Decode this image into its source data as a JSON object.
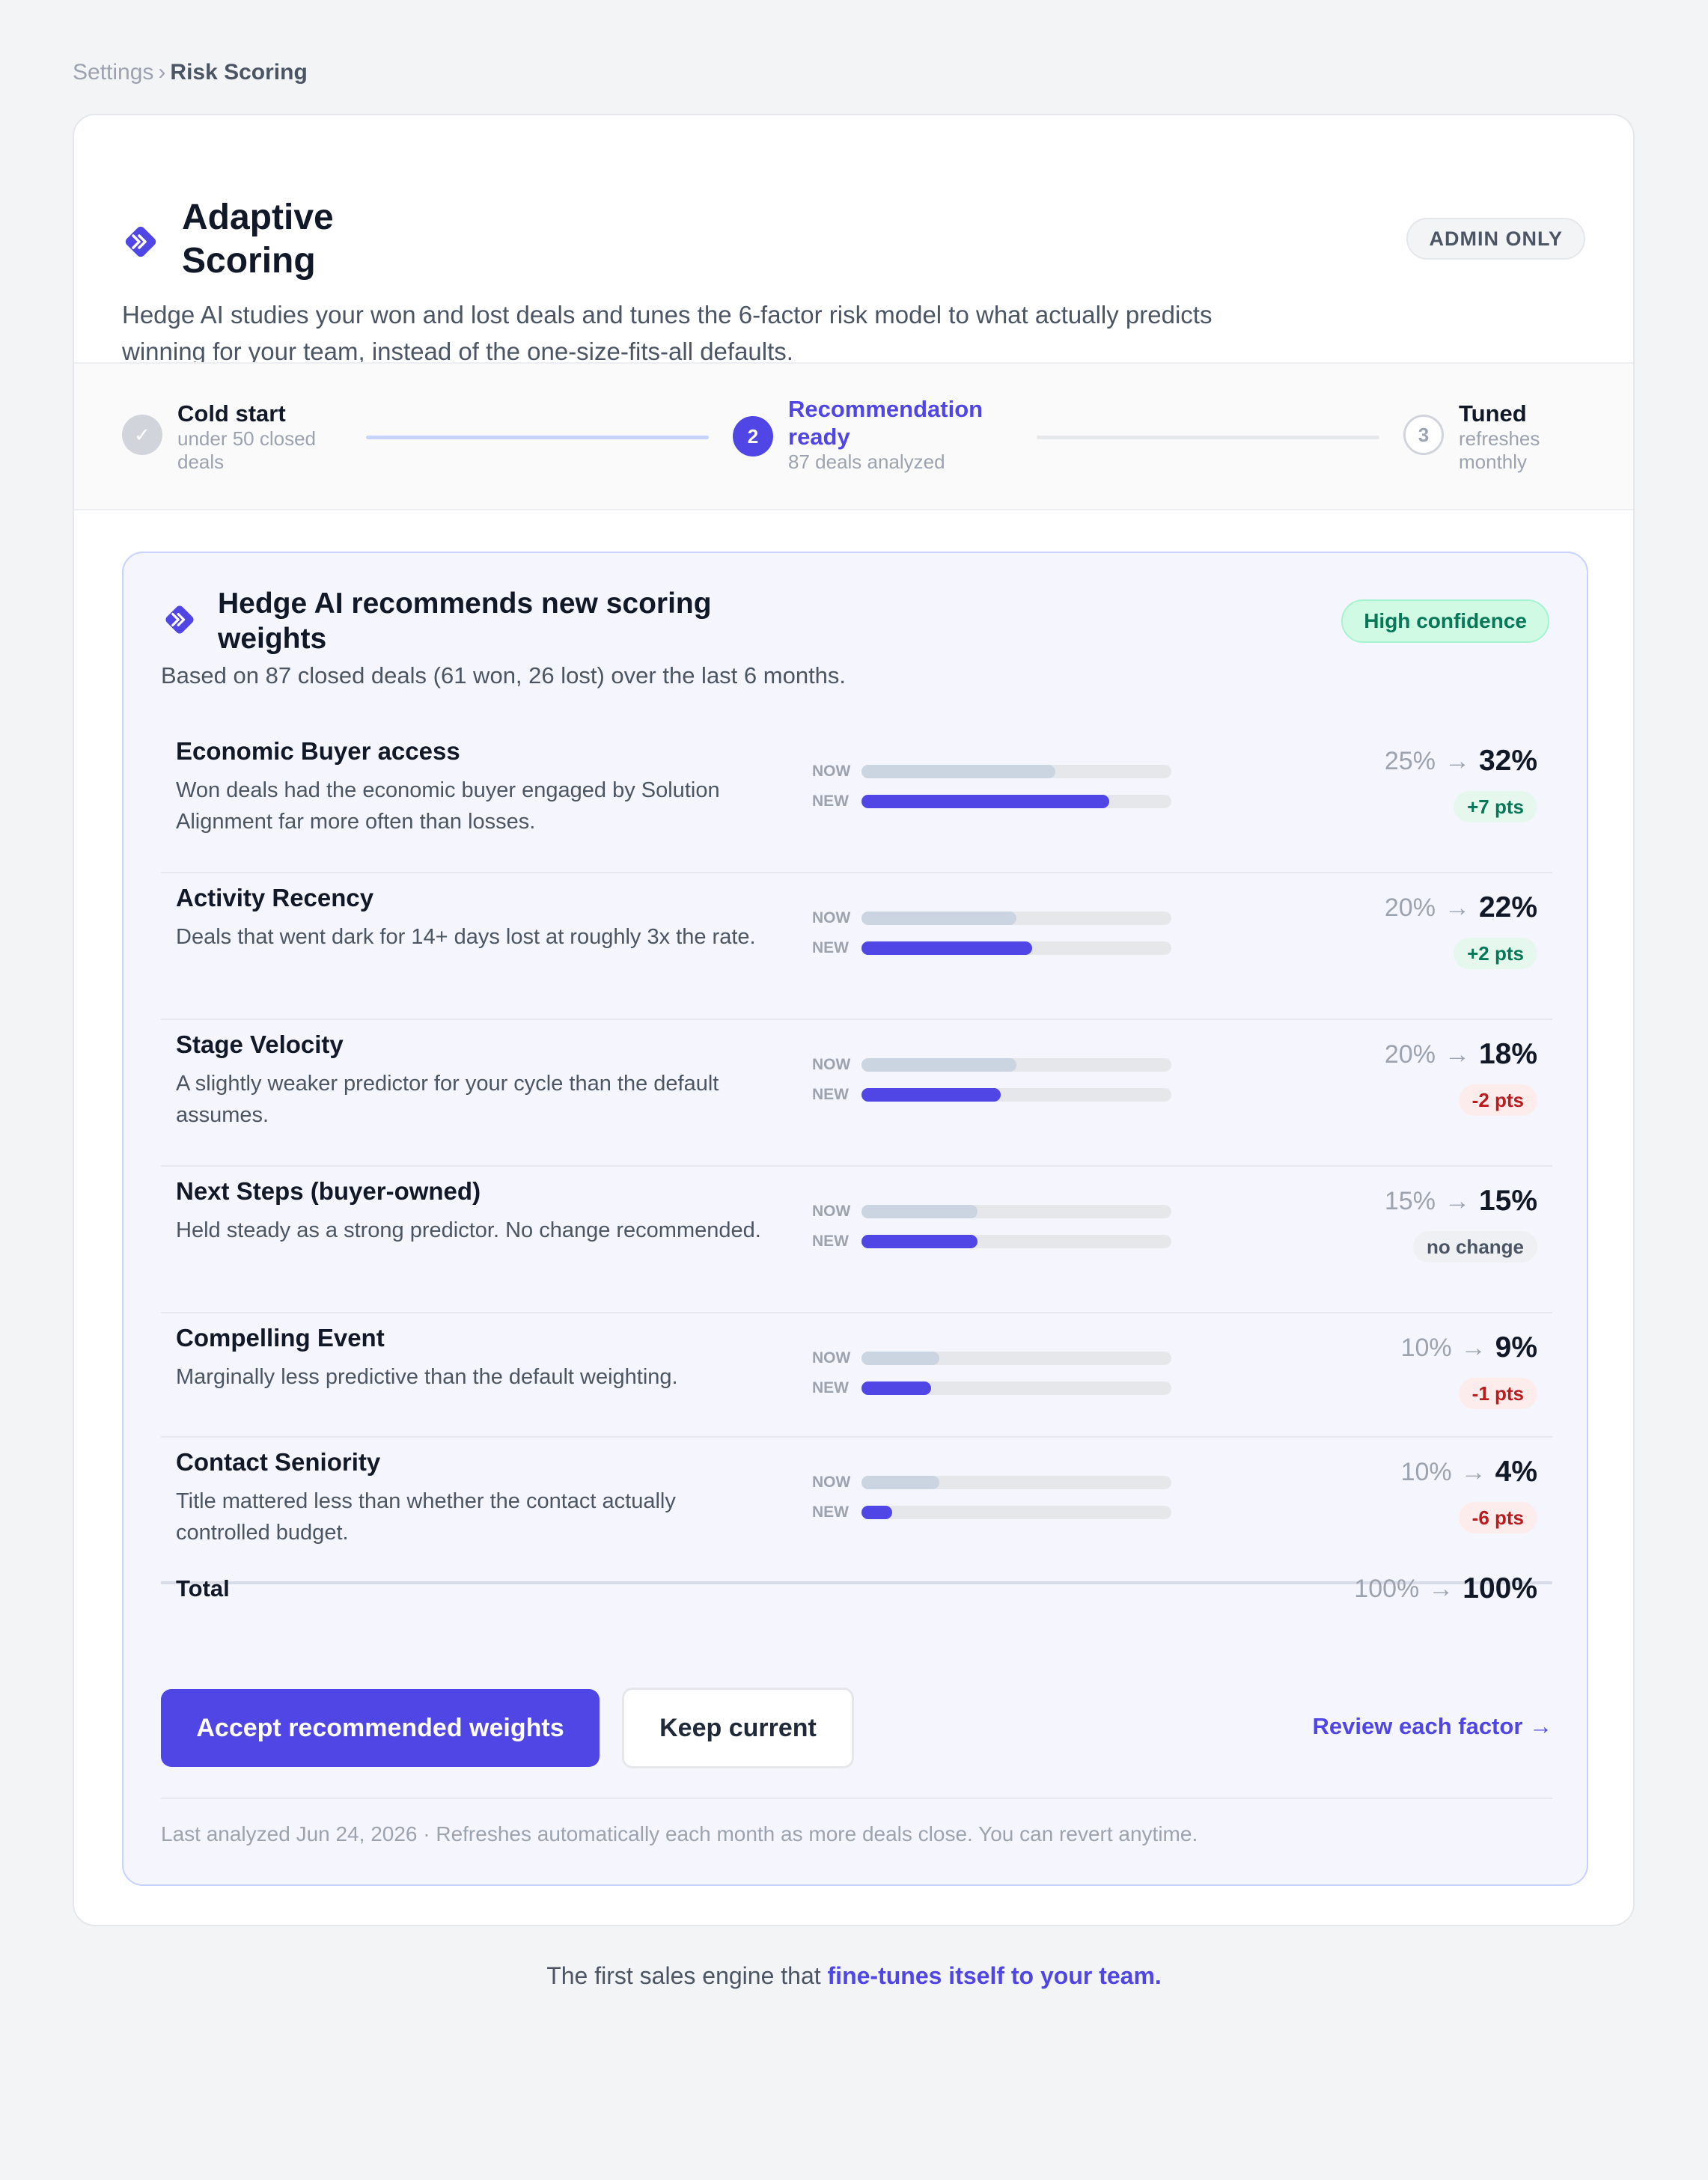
{
  "breadcrumb": {
    "parent": "Settings",
    "separator": "›",
    "current": "Risk Scoring"
  },
  "header": {
    "title": "Adaptive Scoring",
    "badge": "ADMIN ONLY",
    "description": "Hedge AI studies your won and lost deals and tunes the 6-factor risk model to what actually predicts winning for your team, instead of the one-size-fits-all defaults."
  },
  "stepper": {
    "steps": [
      {
        "label": "Cold start",
        "sub": "under 50 closed deals",
        "marker": "✓",
        "state": "done"
      },
      {
        "label": "Recommendation ready",
        "sub": "87 deals analyzed",
        "marker": "2",
        "state": "active"
      },
      {
        "label": "Tuned",
        "sub": "refreshes monthly",
        "marker": "3",
        "state": "pending"
      }
    ]
  },
  "recommendation": {
    "title": "Hedge AI recommends new scoring weights",
    "confidence": "High confidence",
    "based_on": "Based on 87 closed deals (61 won, 26 lost) over the last 6 months.",
    "now_label": "NOW",
    "new_label": "NEW",
    "arrow": "→",
    "factors": [
      {
        "name": "Economic Buyer access",
        "desc": "Won deals had the economic buyer engaged by Solution Alignment far more often than losses.",
        "now": 25,
        "new": 32,
        "now_text": "25%",
        "new_text": "32%",
        "change": "+7 pts",
        "trend": "up"
      },
      {
        "name": "Activity Recency",
        "desc": "Deals that went dark for 14+ days lost at roughly 3x the rate.",
        "now": 20,
        "new": 22,
        "now_text": "20%",
        "new_text": "22%",
        "change": "+2 pts",
        "trend": "up"
      },
      {
        "name": "Stage Velocity",
        "desc": "A slightly weaker predictor for your cycle than the default assumes.",
        "now": 20,
        "new": 18,
        "now_text": "20%",
        "new_text": "18%",
        "change": "-2 pts",
        "trend": "down"
      },
      {
        "name": "Next Steps (buyer-owned)",
        "desc": "Held steady as a strong predictor. No change recommended.",
        "now": 15,
        "new": 15,
        "now_text": "15%",
        "new_text": "15%",
        "change": "no change",
        "trend": "same"
      },
      {
        "name": "Compelling Event",
        "desc": "Marginally less predictive than the default weighting.",
        "now": 10,
        "new": 9,
        "now_text": "10%",
        "new_text": "9%",
        "change": "-1 pts",
        "trend": "down"
      },
      {
        "name": "Contact Seniority",
        "desc": "Title mattered less than whether the contact actually controlled budget.",
        "now": 10,
        "new": 4,
        "now_text": "10%",
        "new_text": "4%",
        "change": "-6 pts",
        "trend": "down"
      }
    ],
    "total": {
      "label": "Total",
      "now_text": "100%",
      "new_text": "100%"
    },
    "actions": {
      "accept": "Accept recommended weights",
      "keep": "Keep current",
      "review": "Review each factor →"
    },
    "footnote": "Last analyzed Jun 24, 2026 · Refreshes automatically each month as more deals close. You can revert anytime."
  },
  "tagline": {
    "lead": "The first sales engine that ",
    "emphasis": "fine-tunes itself to your team."
  },
  "colors": {
    "accent": "#4f46e5",
    "positive": "#047857",
    "negative": "#b91c1c",
    "bar_now": "#cbd5e1"
  },
  "icons": {
    "logo": "chevrons-diamond-icon",
    "check": "check-icon",
    "arrow": "arrow-right-icon"
  }
}
